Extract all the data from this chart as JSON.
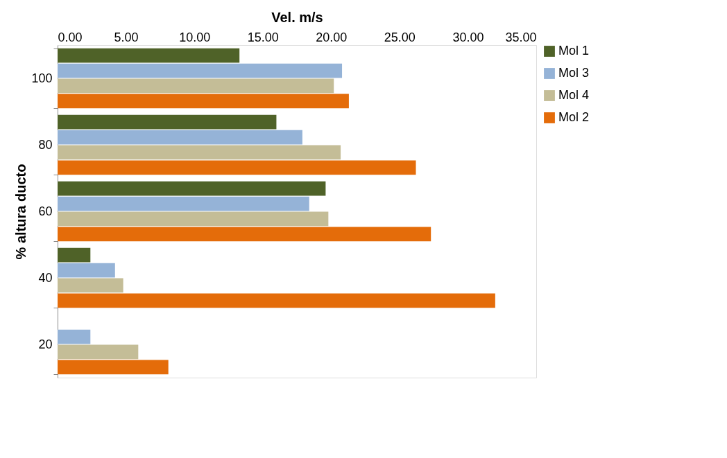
{
  "chart_data": {
    "type": "bar",
    "orientation": "horizontal",
    "xlabel": "Vel. m/s",
    "ylabel": "% altura ducto",
    "categories": [
      "100",
      "80",
      "60",
      "40",
      "20"
    ],
    "series": [
      {
        "name": "Mol 1",
        "color": "#4f6228",
        "values": [
          13.3,
          16.0,
          19.6,
          2.4,
          null
        ]
      },
      {
        "name": "Mol 3",
        "color": "#95b3d7",
        "values": [
          20.8,
          17.9,
          18.4,
          4.2,
          2.4
        ]
      },
      {
        "name": "Mol 4",
        "color": "#c4bd97",
        "values": [
          20.2,
          20.7,
          19.8,
          4.8,
          5.9
        ]
      },
      {
        "name": "Mol 2",
        "color": "#e46c0a",
        "values": [
          21.3,
          26.2,
          27.3,
          32.0,
          8.1
        ]
      }
    ],
    "xlim": [
      0,
      35
    ],
    "xticks": [
      {
        "value": 0,
        "label": "0.00"
      },
      {
        "value": 5,
        "label": "5.00"
      },
      {
        "value": 10,
        "label": "10.00"
      },
      {
        "value": 15,
        "label": "15.00"
      },
      {
        "value": 20,
        "label": "20.00"
      },
      {
        "value": 25,
        "label": "25.00"
      },
      {
        "value": 30,
        "label": "30.00"
      },
      {
        "value": 35,
        "label": "35.00"
      }
    ],
    "grid": false,
    "legend": "right"
  }
}
